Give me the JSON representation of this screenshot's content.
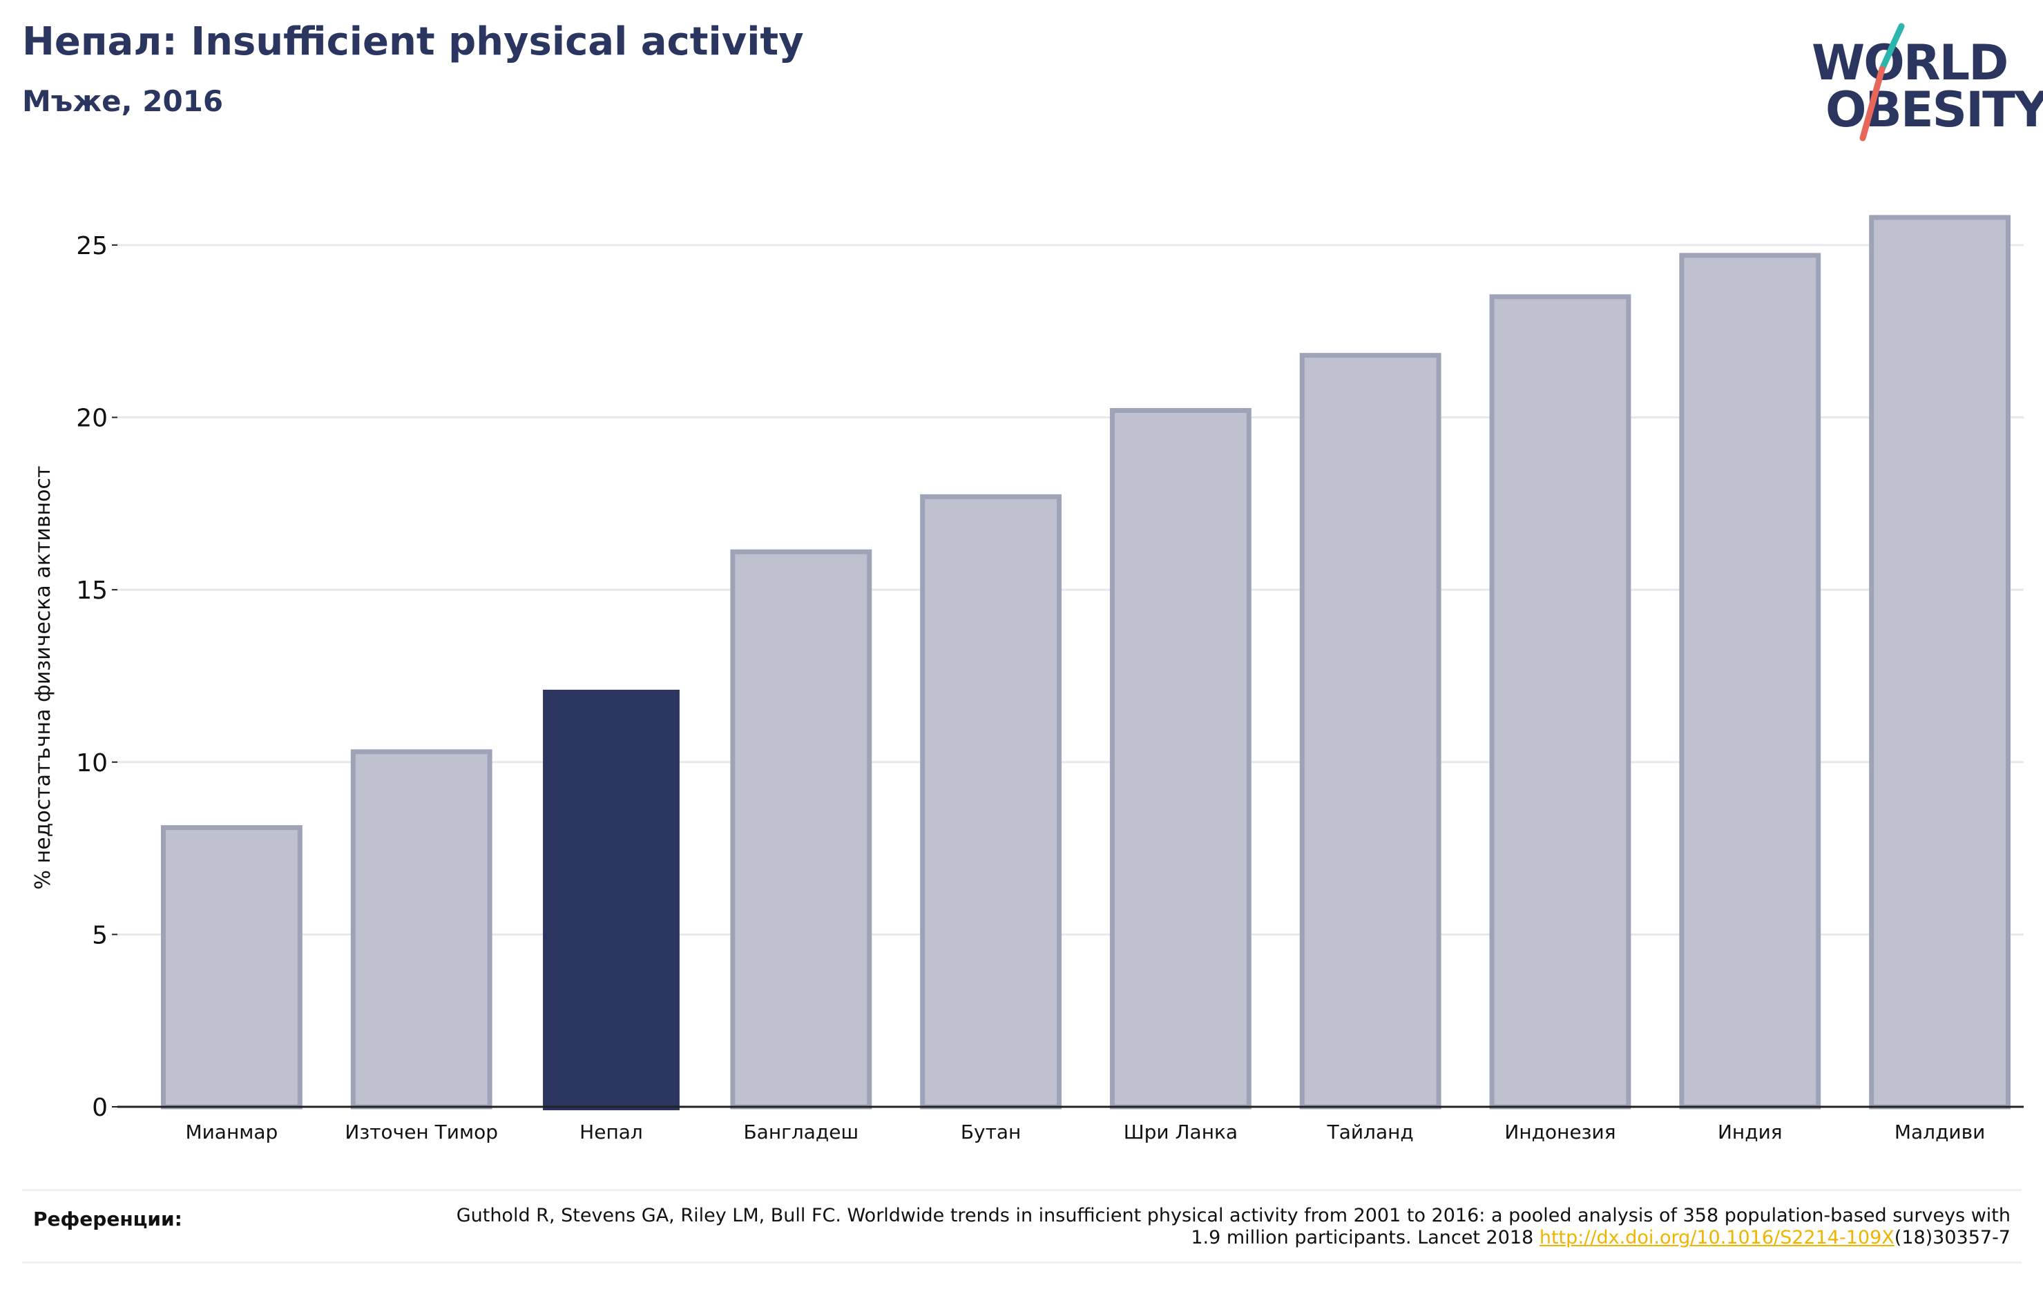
{
  "header": {
    "title": "Непал: Insufficient physical activity",
    "subtitle": "Мъже, 2016"
  },
  "logo": {
    "line1": "WORLD",
    "line2": "OBESITY",
    "colors": {
      "text": "#2b3660",
      "slash_top": "#2bb5ad",
      "slash_bottom": "#e8675a"
    }
  },
  "colors": {
    "highlight": "#2b3660",
    "bar_fill": "#bfc2ce",
    "bar_edge": "#9ea3b8",
    "grid": "#e6e8ee",
    "axis": "#222222",
    "link": "#f0b400"
  },
  "chart_data": {
    "type": "bar",
    "title": "Непал: Insufficient physical activity",
    "subtitle": "Мъже, 2016",
    "ylabel": "% недостатъчна физическа активност",
    "xlabel": "",
    "ylim": [
      0,
      26.5
    ],
    "yticks": [
      0,
      5,
      10,
      15,
      20,
      25
    ],
    "grid": true,
    "highlight": "Непал",
    "categories": [
      "Мианмар",
      "Източен Тимор",
      "Непал",
      "Бангладеш",
      "Бутан",
      "Шри Ланка",
      "Тайланд",
      "Индонезия",
      "Индия",
      "Малдиви"
    ],
    "values": [
      8.1,
      10.3,
      12.1,
      16.1,
      17.7,
      20.2,
      21.8,
      23.5,
      24.7,
      25.8
    ]
  },
  "references": {
    "label": "Референции:",
    "text_before": "Guthold R, Stevens GA, Riley LM, Bull FC. Worldwide trends in insufficient physical activity from 2001 to 2016: a pooled analysis of 358 population-based surveys with 1.9 million participants. Lancet 2018 ",
    "link": "http://dx.doi.org/10.1016/S2214-109X",
    "text_after": "(18)30357-7"
  }
}
